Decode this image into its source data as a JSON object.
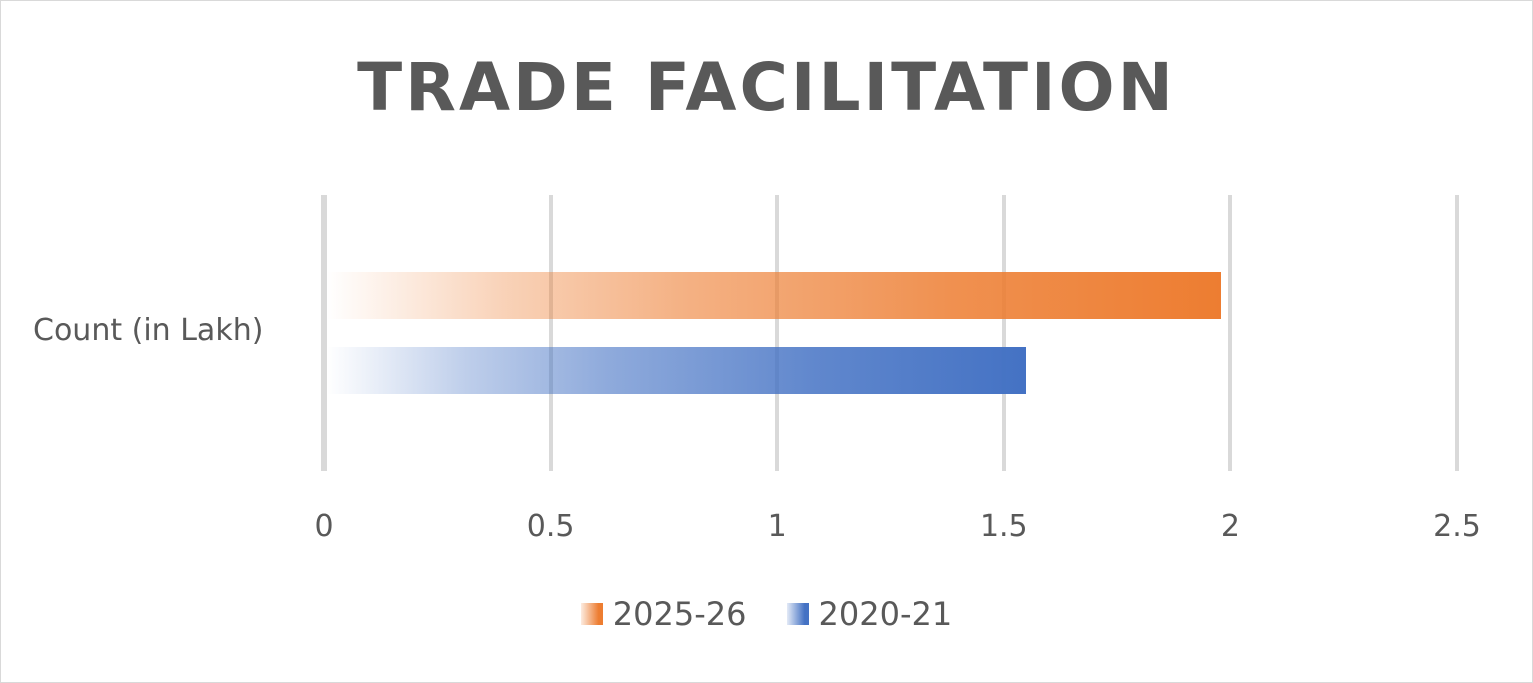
{
  "chart_data": {
    "type": "bar",
    "orientation": "horizontal",
    "title": "TRADE FACILITATION",
    "categories": [
      "Count (in Lakh)"
    ],
    "series": [
      {
        "name": "2025-26",
        "values": [
          1.98
        ],
        "color": "#ED7D31"
      },
      {
        "name": "2020-21",
        "values": [
          1.55
        ],
        "color": "#4472C4"
      }
    ],
    "xlabel": "",
    "ylabel": "",
    "xlim": [
      0,
      2.5
    ],
    "xticks": [
      "0",
      "0.5",
      "1",
      "1.5",
      "2",
      "2.5"
    ],
    "grid": true,
    "legend_position": "bottom",
    "fill": "gradient (transparent to solid, left to right)"
  },
  "labels": {
    "title": "TRADE FACILITATION",
    "category": "Count (in Lakh)",
    "legend": [
      "2025-26",
      "2020-21"
    ]
  }
}
